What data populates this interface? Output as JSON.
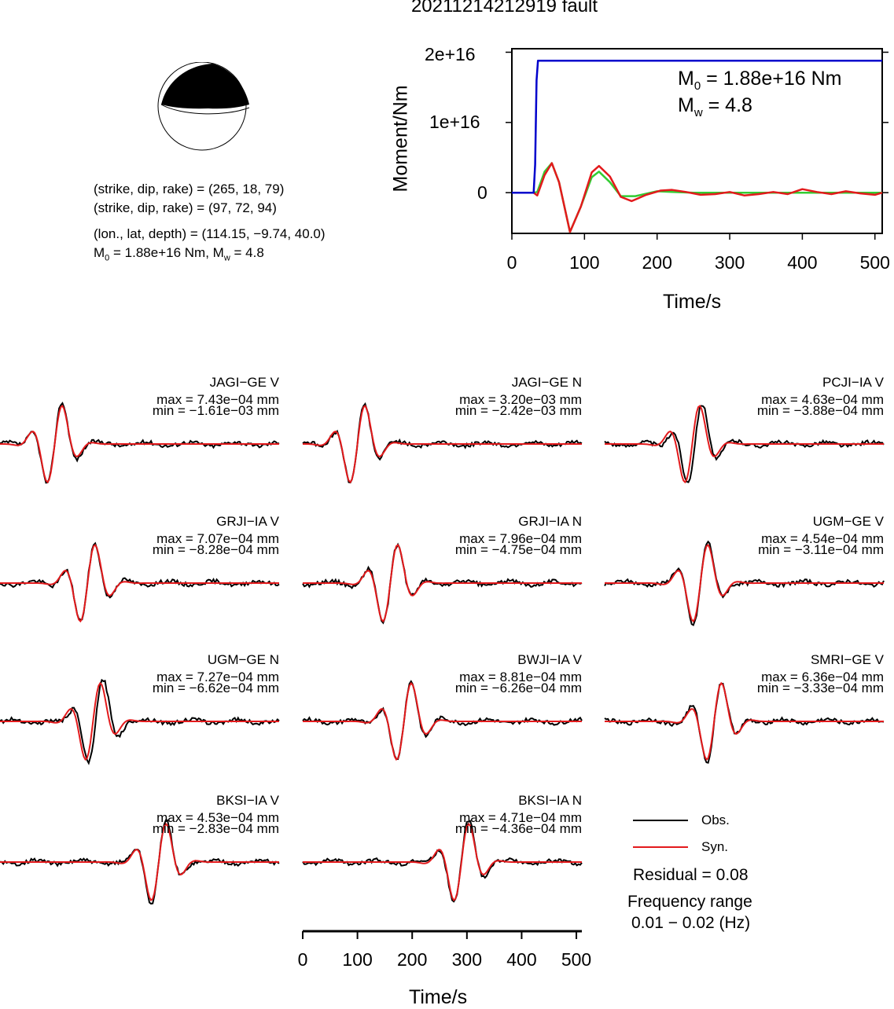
{
  "title": "20211214212919 fault",
  "focal": {
    "plane1": "(strike, dip, rake) = (265, 18, 79)",
    "plane2": "(strike, dip, rake) = (97, 72, 94)",
    "location": "(lon., lat, depth) = (114.15, −9.74, 40.0)",
    "moment_prefix": "M",
    "moment_sub": "0",
    "moment_rest": " = 1.88e+16 Nm, M",
    "mw_sub": "w",
    "mw_rest": " = 4.8"
  },
  "colors": {
    "observed": "#000000",
    "synthetic": "#e31a1c",
    "moment_cumulative": "#0000cc",
    "moment_rate": "#33cc33"
  },
  "chart_data": [
    {
      "type": "line",
      "xlabel": "Time/s",
      "ylabel": "Moment/Nm",
      "xlim": [
        0,
        510
      ],
      "ylim": [
        -5800000000000000.0,
        2.05e+16
      ],
      "xticks": [
        0,
        100,
        200,
        300,
        400,
        500
      ],
      "yticks": [
        {
          "value": 0,
          "label": "0"
        },
        {
          "value": 1e+16,
          "label": "1e+16"
        },
        {
          "value": 2e+16,
          "label": "2e+16"
        }
      ],
      "annotation": {
        "m0_main": "M",
        "m0_sub": "0",
        "m0_rest": " = 1.88e+16 Nm",
        "mw_main": "M",
        "mw_sub": "w",
        "mw_rest": " = 4.8"
      },
      "series": [
        {
          "key": "cumulative",
          "color": "#0000cc",
          "x": [
            0,
            30,
            32,
            34,
            36,
            510
          ],
          "y": [
            0,
            0,
            4000000000000000.0,
            1.6e+16,
            1.88e+16,
            1.88e+16
          ]
        },
        {
          "key": "rate_green",
          "color": "#33cc33",
          "x": [
            0,
            30,
            35,
            45,
            55,
            65,
            80,
            95,
            110,
            120,
            135,
            150,
            170,
            200,
            220,
            250,
            280,
            320,
            400,
            510
          ],
          "y": [
            0,
            0,
            100000000000000.0,
            3000000000000000.0,
            4200000000000000.0,
            1500000000000000.0,
            -5600000000000000.0,
            -2000000000000000.0,
            2200000000000000.0,
            3000000000000000.0,
            1500000000000000.0,
            -500000000000000.0,
            -500000000000000.0,
            200000000000000.0,
            100000000000000.0,
            0,
            0,
            0,
            0,
            0
          ]
        },
        {
          "key": "rate_red",
          "color": "#e31a1c",
          "x": [
            0,
            30,
            35,
            45,
            55,
            65,
            80,
            95,
            110,
            120,
            135,
            150,
            165,
            185,
            205,
            220,
            240,
            260,
            280,
            300,
            320,
            340,
            360,
            380,
            400,
            420,
            440,
            460,
            480,
            500,
            510
          ],
          "y": [
            0,
            0,
            -400000000000000.0,
            2500000000000000.0,
            4200000000000000.0,
            1500000000000000.0,
            -5600000000000000.0,
            -2000000000000000.0,
            2900000000000000.0,
            3800000000000000.0,
            2300000000000000.0,
            -600000000000000.0,
            -1200000000000000.0,
            -300000000000000.0,
            300000000000000.0,
            400000000000000.0,
            100000000000000.0,
            -300000000000000.0,
            -200000000000000.0,
            100000000000000.0,
            -400000000000000.0,
            -200000000000000.0,
            100000000000000.0,
            -200000000000000.0,
            500000000000000.0,
            100000000000000.0,
            -200000000000000.0,
            200000000000000.0,
            -100000000000000.0,
            -300000000000000.0,
            0
          ]
        }
      ]
    },
    {
      "type": "line",
      "xlabel": "Time/s",
      "xlim": [
        0,
        510
      ],
      "xticks": [
        0,
        100,
        200,
        300,
        400,
        500
      ],
      "series": [
        "Obs.",
        "Syn."
      ],
      "stations": [
        {
          "name": "JAGI−GE V",
          "max": "max = 7.43e−04 mm",
          "min": "min = −1.61e−03 mm",
          "pulse_t": 100,
          "obs_shift": 0
        },
        {
          "name": "JAGI−GE N",
          "max": "max = 3.20e−03 mm",
          "min": "min = −2.42e−03 mm",
          "pulse_t": 100,
          "obs_shift": 0
        },
        {
          "name": "PCJI−IA V",
          "max": "max = 4.63e−04 mm",
          "min": "min = −3.88e−04 mm",
          "pulse_t": 160,
          "obs_shift": -5
        },
        {
          "name": "GRJI−IA V",
          "max": "max = 7.07e−04 mm",
          "min": "min = −8.28e−04 mm",
          "pulse_t": 160,
          "obs_shift": 0
        },
        {
          "name": "GRJI−IA N",
          "max": "max = 7.96e−04 mm",
          "min": "min = −4.75e−04 mm",
          "pulse_t": 160,
          "obs_shift": 0
        },
        {
          "name": "UGM−GE V",
          "max": "max = 4.54e−04 mm",
          "min": "min = −3.11e−04 mm",
          "pulse_t": 175,
          "obs_shift": 0
        },
        {
          "name": "UGM−GE N",
          "max": "max = 7.27e−04 mm",
          "min": "min = −6.62e−04 mm",
          "pulse_t": 170,
          "obs_shift": -5
        },
        {
          "name": "BWJI−IA V",
          "max": "max = 8.81e−04 mm",
          "min": "min = −6.26e−04 mm",
          "pulse_t": 185,
          "obs_shift": 0
        },
        {
          "name": "SMRI−GE V",
          "max": "max = 6.36e−04 mm",
          "min": "min = −3.33e−04 mm",
          "pulse_t": 200,
          "obs_shift": 0
        },
        {
          "name": "BKSI−IA V",
          "max": "max = 4.53e−04 mm",
          "min": "min = −2.83e−04 mm",
          "pulse_t": 290,
          "obs_shift": 0
        },
        {
          "name": "BKSI−IA N",
          "max": "max = 4.71e−04 mm",
          "min": "min = −4.36e−04 mm",
          "pulse_t": 290,
          "obs_shift": 0
        }
      ]
    }
  ],
  "legend": {
    "obs_label": "Obs.",
    "syn_label": "Syn.",
    "residual": "Residual = 0.08",
    "freq_title": "Frequency range",
    "freq_value": "0.01 − 0.02 (Hz)"
  }
}
